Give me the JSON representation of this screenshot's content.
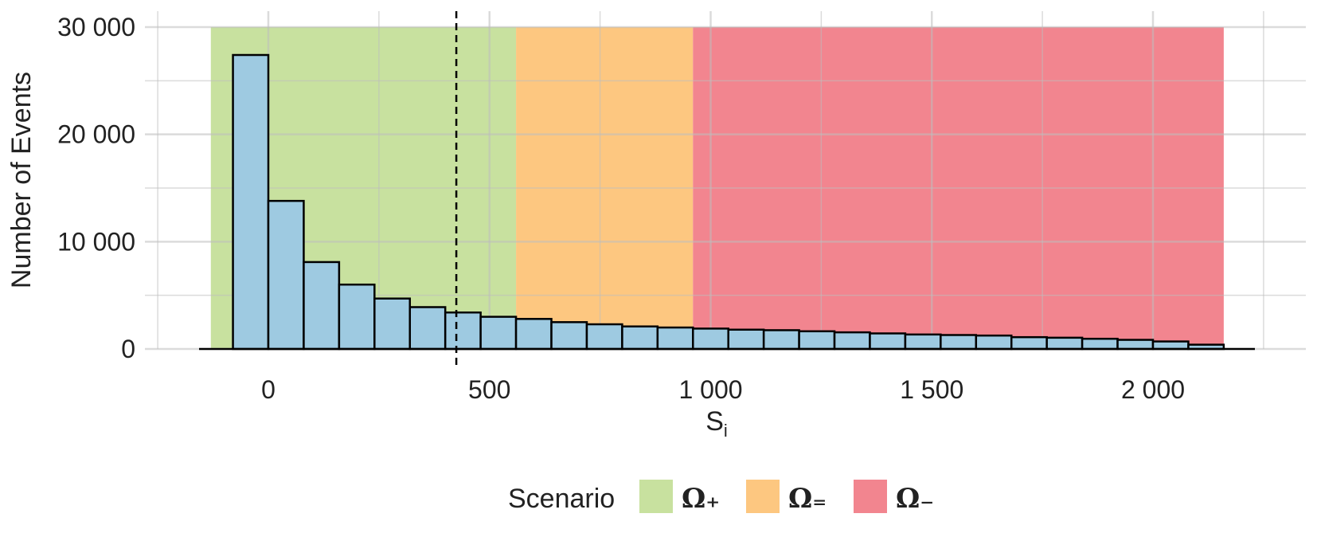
{
  "chart_data": {
    "type": "bar",
    "xlabel": "S",
    "xlabel_subscript": "i",
    "ylabel": "Number of Events",
    "xlim": [
      -130,
      2260
    ],
    "ylim": [
      0,
      30000
    ],
    "x_ticks": [
      0,
      500,
      1000,
      1500,
      2000
    ],
    "x_tick_labels": [
      "0",
      "500",
      "1 000",
      "1 500",
      "2 000"
    ],
    "y_ticks": [
      0,
      10000,
      20000,
      30000
    ],
    "y_tick_labels": [
      "0",
      "10 000",
      "20 000",
      "30 000"
    ],
    "grid": true,
    "bin_width": 80,
    "bins": [
      {
        "x0": -80,
        "x1": 0,
        "count": 27400
      },
      {
        "x0": 0,
        "x1": 80,
        "count": 13800
      },
      {
        "x0": 80,
        "x1": 160,
        "count": 8100
      },
      {
        "x0": 160,
        "x1": 240,
        "count": 6000
      },
      {
        "x0": 240,
        "x1": 320,
        "count": 4700
      },
      {
        "x0": 320,
        "x1": 400,
        "count": 3900
      },
      {
        "x0": 400,
        "x1": 480,
        "count": 3400
      },
      {
        "x0": 480,
        "x1": 560,
        "count": 3000
      },
      {
        "x0": 560,
        "x1": 640,
        "count": 2800
      },
      {
        "x0": 640,
        "x1": 720,
        "count": 2500
      },
      {
        "x0": 720,
        "x1": 800,
        "count": 2300
      },
      {
        "x0": 800,
        "x1": 880,
        "count": 2100
      },
      {
        "x0": 880,
        "x1": 960,
        "count": 2000
      },
      {
        "x0": 960,
        "x1": 1040,
        "count": 1900
      },
      {
        "x0": 1040,
        "x1": 1120,
        "count": 1800
      },
      {
        "x0": 1120,
        "x1": 1200,
        "count": 1750
      },
      {
        "x0": 1200,
        "x1": 1280,
        "count": 1650
      },
      {
        "x0": 1280,
        "x1": 1360,
        "count": 1550
      },
      {
        "x0": 1360,
        "x1": 1440,
        "count": 1450
      },
      {
        "x0": 1440,
        "x1": 1520,
        "count": 1350
      },
      {
        "x0": 1520,
        "x1": 1600,
        "count": 1300
      },
      {
        "x0": 1600,
        "x1": 1680,
        "count": 1250
      },
      {
        "x0": 1680,
        "x1": 1760,
        "count": 1100
      },
      {
        "x0": 1760,
        "x1": 1840,
        "count": 1050
      },
      {
        "x0": 1840,
        "x1": 1920,
        "count": 950
      },
      {
        "x0": 1920,
        "x1": 2000,
        "count": 850
      },
      {
        "x0": 2000,
        "x1": 2080,
        "count": 700
      },
      {
        "x0": 2080,
        "x1": 2160,
        "count": 400
      }
    ],
    "bar_fill": "#9ecae1",
    "bar_stroke": "#000000",
    "vline": {
      "x": 425,
      "style": "dashed"
    },
    "regions": [
      {
        "label": "Ω₊",
        "x0": -130,
        "x1": 560,
        "color": "#c8e19f"
      },
      {
        "label": "Ω₌",
        "x0": 560,
        "x1": 960,
        "color": "#fdc780"
      },
      {
        "label": "Ω₋",
        "x0": 960,
        "x1": 2160,
        "color": "#f2858f"
      }
    ],
    "legend": {
      "title": "Scenario",
      "position": "bottom"
    }
  }
}
